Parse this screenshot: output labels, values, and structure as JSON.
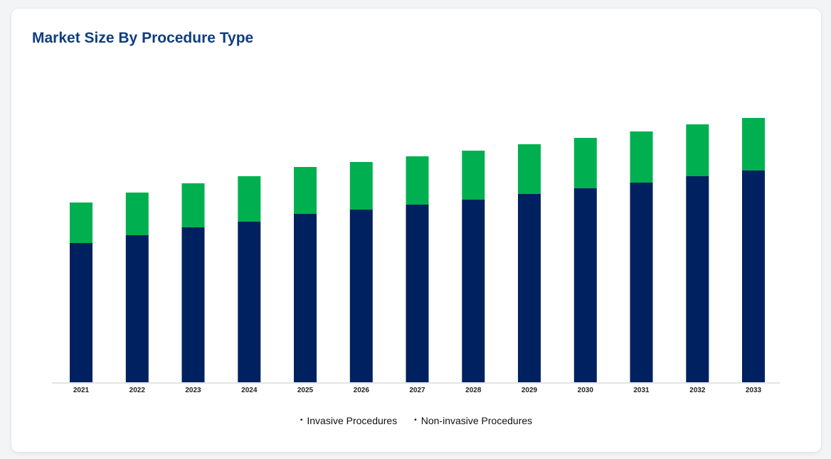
{
  "card": {
    "title": "Market Size By Procedure Type"
  },
  "chart_data": {
    "type": "bar",
    "stacked": true,
    "title": "Market Size By Procedure Type",
    "xlabel": "",
    "ylabel": "",
    "categories": [
      "2021",
      "2022",
      "2023",
      "2024",
      "2025",
      "2026",
      "2027",
      "2028",
      "2029",
      "2030",
      "2031",
      "2032",
      "2033"
    ],
    "series": [
      {
        "name": "Invasive Procedures",
        "color": "#00215f",
        "values": [
          196,
          207,
          218,
          226,
          237,
          243,
          250,
          257,
          265,
          273,
          281,
          290,
          298
        ]
      },
      {
        "name": "Non-invasive Procedures",
        "color": "#00b050",
        "values": [
          57,
          60,
          62,
          64,
          66,
          67,
          68,
          69,
          70,
          71,
          72,
          73,
          74
        ]
      }
    ],
    "ylim": [
      0,
      400
    ],
    "grid": false,
    "legend": "bottom-center"
  }
}
